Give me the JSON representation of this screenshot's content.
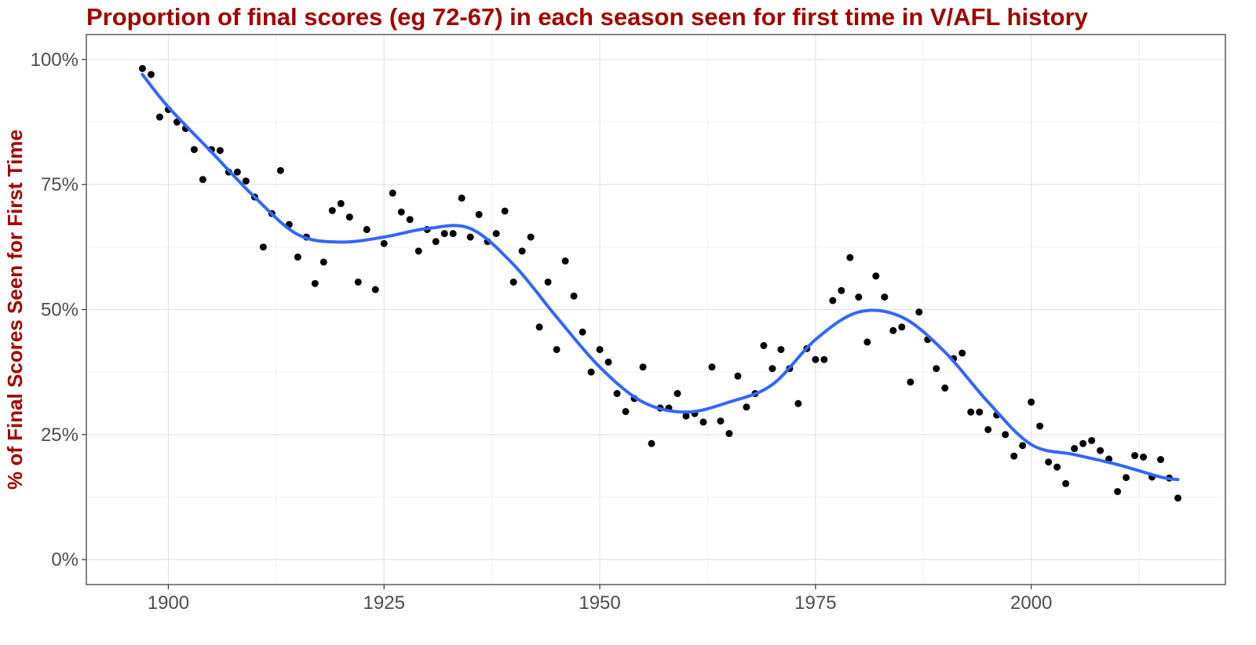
{
  "chart_data": {
    "type": "scatter",
    "title": "Proportion of final scores (eg 72-67) in each season seen for first time in V/AFL history",
    "xlabel": "",
    "ylabel": "% of Final Scores Seen for First Time",
    "xlim": [
      1890.5,
      2022.5
    ],
    "ylim": [
      -0.05,
      1.05
    ],
    "x_ticks": [
      1900,
      1925,
      1950,
      1975,
      2000
    ],
    "x_tick_labels": [
      "1900",
      "1925",
      "1950",
      "1975",
      "2000"
    ],
    "y_ticks": [
      0,
      0.25,
      0.5,
      0.75,
      1.0
    ],
    "y_tick_labels": [
      "0%",
      "25%",
      "50%",
      "75%",
      "100%"
    ],
    "grid": true,
    "colors": {
      "title": "#a00000",
      "points": "#000000",
      "smooth": "#3366ff"
    },
    "series": [
      {
        "kind": "points",
        "x": [
          1897,
          1898,
          1899,
          1900,
          1901,
          1902,
          1903,
          1904,
          1905,
          1906,
          1907,
          1908,
          1909,
          1910,
          1911,
          1912,
          1913,
          1914,
          1915,
          1916,
          1917,
          1918,
          1919,
          1920,
          1921,
          1922,
          1923,
          1924,
          1925,
          1926,
          1927,
          1928,
          1929,
          1930,
          1931,
          1932,
          1933,
          1934,
          1935,
          1936,
          1937,
          1938,
          1939,
          1940,
          1941,
          1942,
          1943,
          1944,
          1945,
          1946,
          1947,
          1948,
          1949,
          1950,
          1951,
          1952,
          1953,
          1954,
          1955,
          1956,
          1957,
          1958,
          1959,
          1960,
          1961,
          1962,
          1963,
          1964,
          1965,
          1966,
          1967,
          1968,
          1969,
          1970,
          1971,
          1972,
          1973,
          1974,
          1975,
          1976,
          1977,
          1978,
          1979,
          1980,
          1981,
          1982,
          1983,
          1984,
          1985,
          1986,
          1987,
          1988,
          1989,
          1990,
          1991,
          1992,
          1993,
          1994,
          1995,
          1996,
          1997,
          1998,
          1999,
          2000,
          2001,
          2002,
          2003,
          2004,
          2005,
          2006,
          2007,
          2008,
          2009,
          2010,
          2011,
          2012,
          2013,
          2014,
          2015,
          2016,
          2017
        ],
        "y": [
          0.982,
          0.97,
          0.885,
          0.9,
          0.875,
          0.862,
          0.82,
          0.76,
          0.82,
          0.818,
          0.775,
          0.775,
          0.757,
          0.725,
          0.625,
          0.692,
          0.778,
          0.67,
          0.605,
          0.645,
          0.552,
          0.595,
          0.698,
          0.712,
          0.685,
          0.555,
          0.66,
          0.54,
          0.632,
          0.733,
          0.695,
          0.68,
          0.617,
          0.66,
          0.636,
          0.652,
          0.652,
          0.723,
          0.645,
          0.69,
          0.636,
          0.652,
          0.697,
          0.555,
          0.617,
          0.645,
          0.465,
          0.555,
          0.42,
          0.597,
          0.527,
          0.455,
          0.375,
          0.42,
          0.395,
          0.332,
          0.296,
          0.322,
          0.385,
          0.232,
          0.303,
          0.303,
          0.332,
          0.287,
          0.292,
          0.275,
          0.385,
          0.277,
          0.252,
          0.367,
          0.305,
          0.332,
          0.428,
          0.382,
          0.42,
          0.382,
          0.312,
          0.422,
          0.4,
          0.4,
          0.518,
          0.538,
          0.604,
          0.525,
          0.435,
          0.567,
          0.525,
          0.458,
          0.465,
          0.355,
          0.495,
          0.44,
          0.382,
          0.343,
          0.402,
          0.413,
          0.295,
          0.295,
          0.26,
          0.289,
          0.25,
          0.207,
          0.228,
          0.315,
          0.267,
          0.195,
          0.185,
          0.152,
          0.222,
          0.232,
          0.238,
          0.218,
          0.201,
          0.136,
          0.164,
          0.208,
          0.205,
          0.165,
          0.2,
          0.163,
          0.123
        ]
      },
      {
        "kind": "smooth",
        "x": [
          1897,
          1900,
          1905,
          1910,
          1915,
          1920,
          1925,
          1930,
          1935,
          1940,
          1945,
          1950,
          1955,
          1960,
          1965,
          1970,
          1975,
          1980,
          1985,
          1990,
          1995,
          2000,
          2005,
          2010,
          2015,
          2017
        ],
        "y": [
          0.97,
          0.905,
          0.815,
          0.725,
          0.65,
          0.635,
          0.645,
          0.662,
          0.662,
          0.59,
          0.485,
          0.385,
          0.315,
          0.295,
          0.315,
          0.35,
          0.44,
          0.495,
          0.485,
          0.415,
          0.315,
          0.23,
          0.21,
          0.19,
          0.165,
          0.16
        ]
      }
    ]
  }
}
